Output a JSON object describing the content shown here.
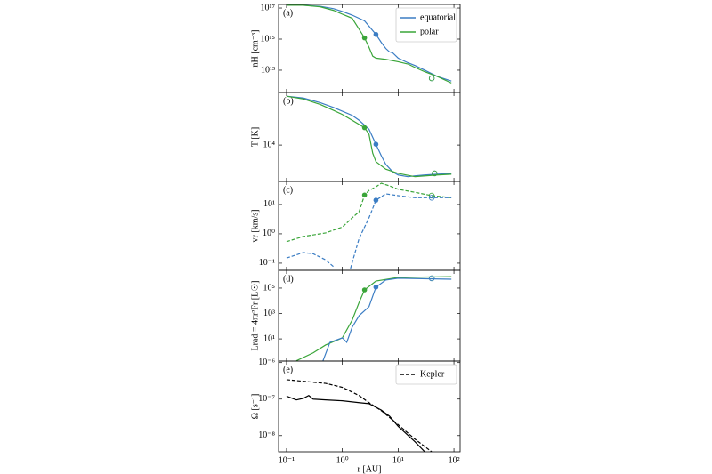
{
  "chart_data": [
    {
      "type": "line",
      "panel_label": "(a)",
      "ylabel": "nH [cm⁻³]",
      "xlog": true,
      "ylog": true,
      "xlim": [
        0.072,
        129
      ],
      "ylim": [
        370000000000.0,
        1.7e+17
      ],
      "yticks": [
        {
          "value": 10000000000000.0,
          "label": "10¹³"
        },
        {
          "value": 1000000000000000.0,
          "label": "10¹⁵"
        },
        {
          "value": 1e+17,
          "label": "10¹⁷"
        }
      ],
      "legend": "upper right",
      "series": [
        {
          "name": "equatorial",
          "color": "#3b7dc4",
          "dash": false,
          "x": [
            0.1,
            0.2,
            0.4,
            0.7,
            1,
            1.5,
            2.5,
            4,
            5,
            6,
            7,
            8,
            10,
            15,
            20,
            30,
            50,
            90
          ],
          "values": [
            1.5e+17,
            1.5e+17,
            1.3e+17,
            9e+16,
            6e+16,
            3.5e+16,
            1.5e+16,
            2000000000000000.0,
            600000000000000.0,
            250000000000000.0,
            150000000000000.0,
            130000000000000.0,
            60000000000000.0,
            30000000000000.0,
            20000000000000.0,
            10000000000000.0,
            4000000000000.0,
            2000000000000.0
          ],
          "marker": {
            "x": 4,
            "value": 2000000000000000.0
          },
          "open_marker": {
            "x": 40,
            "value": 3000000000000.0
          }
        },
        {
          "name": "polar",
          "color": "#3aa539",
          "dash": false,
          "x": [
            0.1,
            0.2,
            0.4,
            0.7,
            1,
            1.5,
            2.5,
            3,
            3.5,
            4,
            6,
            10,
            15,
            20,
            30,
            50,
            90
          ],
          "values": [
            1.5e+17,
            1.5e+17,
            1.2e+17,
            7e+16,
            4e+16,
            2.2e+16,
            1200000000000000.0,
            300000000000000.0,
            80000000000000.0,
            60000000000000.0,
            50000000000000.0,
            35000000000000.0,
            25000000000000.0,
            15000000000000.0,
            8000000000000.0,
            4000000000000.0,
            1500000000000.0
          ],
          "marker": {
            "x": 2.5,
            "value": 1200000000000000.0
          },
          "open_marker": {
            "x": 40,
            "value": 3000000000000.0
          }
        }
      ]
    },
    {
      "type": "line",
      "panel_label": "(b)",
      "ylabel": "T [K]",
      "xlog": true,
      "ylog": true,
      "xlim": [
        0.072,
        129
      ],
      "ylim": [
        2600,
        70000
      ],
      "yticks": [
        {
          "value": 10000,
          "label": "10⁴"
        }
      ],
      "series": [
        {
          "color": "#3b7dc4",
          "dash": false,
          "x": [
            0.1,
            0.2,
            0.4,
            0.7,
            1,
            1.5,
            2,
            3,
            4,
            5,
            6,
            8,
            10,
            15,
            20,
            30,
            50,
            90
          ],
          "values": [
            61000,
            57000,
            48000,
            40000,
            35000,
            30000,
            25000,
            18000,
            10300,
            6700,
            4900,
            3700,
            3300,
            3100,
            3200,
            3300,
            3400,
            3500
          ],
          "marker": {
            "x": 4,
            "value": 10300
          },
          "open_marker": {
            "x": 45,
            "value": 3500
          }
        },
        {
          "color": "#3aa539",
          "dash": false,
          "x": [
            0.1,
            0.2,
            0.4,
            0.7,
            1,
            1.5,
            2.5,
            3,
            3.5,
            4,
            6,
            10,
            20,
            50,
            90
          ],
          "values": [
            61000,
            55000,
            45000,
            36000,
            31000,
            25000,
            19000,
            15000,
            7400,
            5400,
            4100,
            3500,
            3100,
            3300,
            3400
          ],
          "marker": {
            "x": 2.5,
            "value": 19000
          },
          "open_marker": {
            "x": 45,
            "value": 3500
          }
        }
      ]
    },
    {
      "type": "line",
      "panel_label": "(c)",
      "ylabel": "vr [km/s]",
      "xlog": true,
      "ylog": true,
      "xlim": [
        0.072,
        129
      ],
      "ylim": [
        0.057,
        61
      ],
      "yticks": [
        {
          "value": 0.1,
          "label": "10⁻¹"
        },
        {
          "value": 1,
          "label": "10⁰"
        },
        {
          "value": 10,
          "label": "10¹"
        }
      ],
      "series": [
        {
          "color": "#3aa539",
          "dash": true,
          "x": [
            0.1,
            0.2,
            0.5,
            1,
            1.5,
            2,
            2.5,
            3,
            4,
            5,
            7,
            10,
            20,
            40,
            90
          ],
          "values": [
            0.54,
            0.81,
            1.07,
            1.7,
            3.5,
            5.7,
            21,
            30,
            40,
            53,
            43,
            33,
            26,
            20,
            17
          ],
          "marker": {
            "x": 2.5,
            "value": 21
          },
          "open_marker": {
            "x": 40,
            "value": 20
          }
        },
        {
          "color": "#3b7dc4",
          "dash": true,
          "x": [
            0.1,
            0.2,
            0.3,
            0.5,
            0.7,
            1,
            1.4,
            2,
            3,
            4,
            6,
            10,
            20,
            40,
            90
          ],
          "values": [
            0.15,
            0.23,
            0.21,
            0.13,
            0.075,
            null,
            0.066,
            0.7,
            3.5,
            14,
            23,
            20,
            17,
            17,
            17
          ],
          "marker": {
            "x": 4,
            "value": 14
          },
          "open_marker": {
            "x": 40,
            "value": 17
          }
        }
      ]
    },
    {
      "type": "line",
      "panel_label": "(d)",
      "ylabel": "Lrad = 4πr²Fr [L☉]",
      "xlog": true,
      "ylog": true,
      "xlim": [
        0.072,
        129
      ],
      "ylim": [
        0.18,
        2500000
      ],
      "yticks": [
        {
          "value": 10,
          "label": "10¹"
        },
        {
          "value": 1000,
          "label": "10³"
        },
        {
          "value": 100000,
          "label": "10⁵"
        }
      ],
      "series": [
        {
          "color": "#3aa539",
          "dash": false,
          "x": [
            0.15,
            0.3,
            0.5,
            1,
            1.5,
            2,
            2.5,
            4,
            10,
            90
          ],
          "values": [
            0.19,
            0.8,
            3.3,
            12,
            300,
            7600,
            72000,
            360000,
            690000,
            790000
          ],
          "marker": {
            "x": 2.5,
            "value": 72000
          },
          "open_marker": {
            "x": 40,
            "value": 590000
          }
        },
        {
          "color": "#3b7dc4",
          "dash": false,
          "x": [
            0.45,
            0.6,
            1,
            1.2,
            1.5,
            2,
            3,
            4,
            6,
            10,
            90
          ],
          "values": [
            0.19,
            5.4,
            12,
            5.4,
            83,
            680,
            3400,
            120000,
            430000,
            590000,
            500000
          ],
          "marker": {
            "x": 4,
            "value": 120000
          },
          "open_marker": {
            "x": 40,
            "value": 590000
          }
        }
      ]
    },
    {
      "type": "line",
      "panel_label": "(e)",
      "ylabel": "Ω [s⁻¹]",
      "xlabel": "r [AU]",
      "xlog": true,
      "ylog": true,
      "xlim": [
        0.072,
        129
      ],
      "ylim": [
        3.6e-09,
        1.1e-06
      ],
      "yticks": [
        {
          "value": 1e-08,
          "label": "10⁻⁸"
        },
        {
          "value": 1e-07,
          "label": "10⁻⁷"
        },
        {
          "value": 1e-06,
          "label": "10⁻⁶"
        }
      ],
      "xticks": [
        {
          "value": 0.1,
          "label": "10⁻¹"
        },
        {
          "value": 1,
          "label": "10⁰"
        },
        {
          "value": 10,
          "label": "10¹"
        },
        {
          "value": 100,
          "label": "10²"
        }
      ],
      "legend": "upper right",
      "series": [
        {
          "color": "#000000",
          "dash": false,
          "x": [
            0.1,
            0.15,
            0.2,
            0.25,
            0.3,
            0.5,
            1,
            2,
            3,
            5,
            7,
            10,
            20,
            30
          ],
          "values": [
            1.2e-07,
            9.5e-08,
            1.05e-07,
            1.25e-07,
            1e-07,
            9.5e-08,
            9e-08,
            8e-08,
            7.5e-08,
            5e-08,
            3.4e-08,
            1.8e-08,
            6.8e-09,
            3.6e-09
          ]
        },
        {
          "name": "Kepler",
          "color": "#000000",
          "dash": true,
          "x": [
            0.1,
            0.5,
            1,
            2,
            3,
            5,
            10,
            20,
            40
          ],
          "values": [
            3.4e-07,
            2.7e-07,
            2.1e-07,
            1.25e-07,
            8e-08,
            4.8e-08,
            2e-08,
            8e-09,
            3.6e-09
          ]
        }
      ]
    }
  ]
}
